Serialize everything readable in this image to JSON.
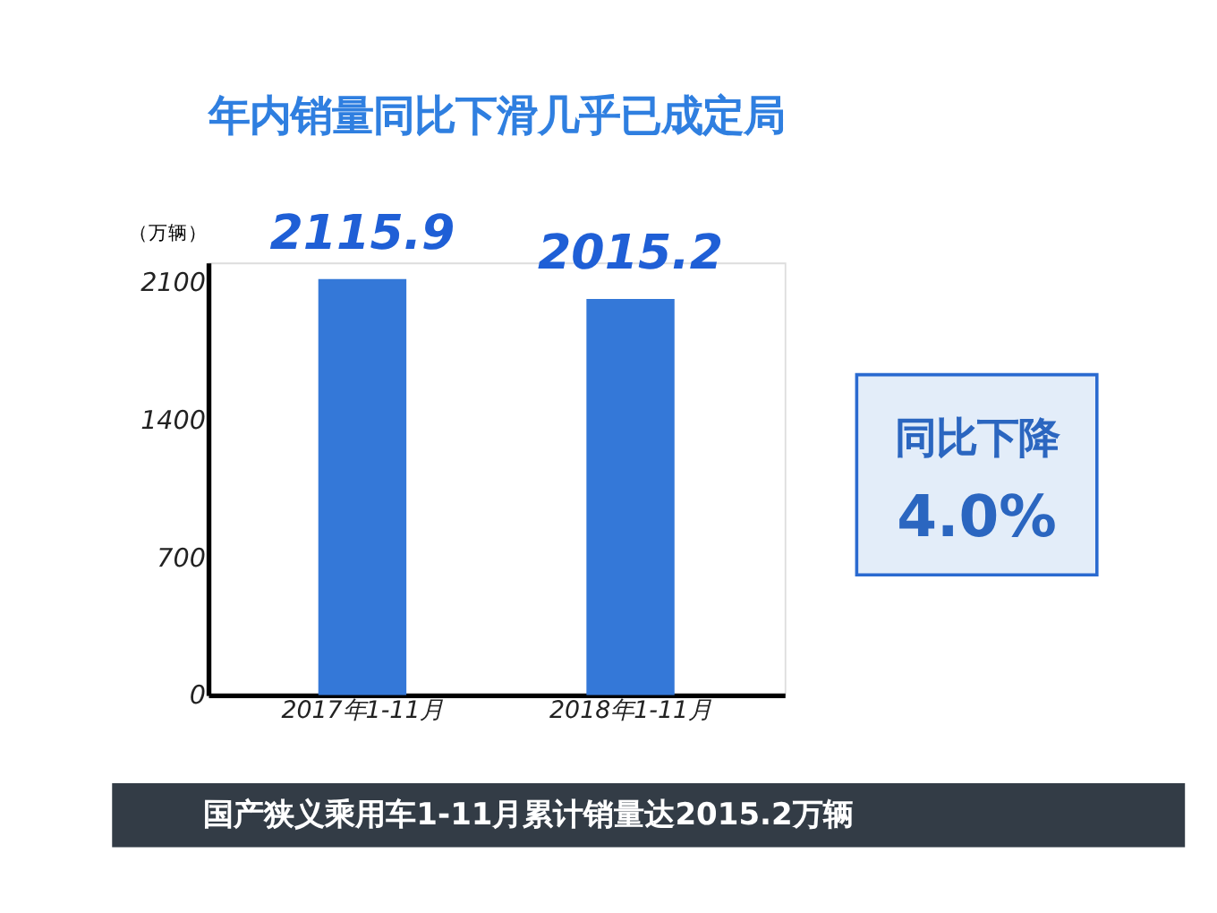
{
  "chart_data": {
    "type": "bar",
    "title": "年内销量同比下滑几乎已成定局",
    "ylabel": "（万辆）",
    "categories": [
      "2017年1-11月",
      "2018年1-11月"
    ],
    "values": [
      2115.9,
      2015.2
    ],
    "color": "#3478d8",
    "ylim": [
      0,
      2200
    ],
    "yticks": [
      0,
      700,
      1400,
      2100
    ],
    "grid": false,
    "data_labels": true,
    "annotations": [
      "同比下降",
      "4.0%",
      "国产狭义乘用车1-11月累计销量达2015.2万辆"
    ]
  }
}
